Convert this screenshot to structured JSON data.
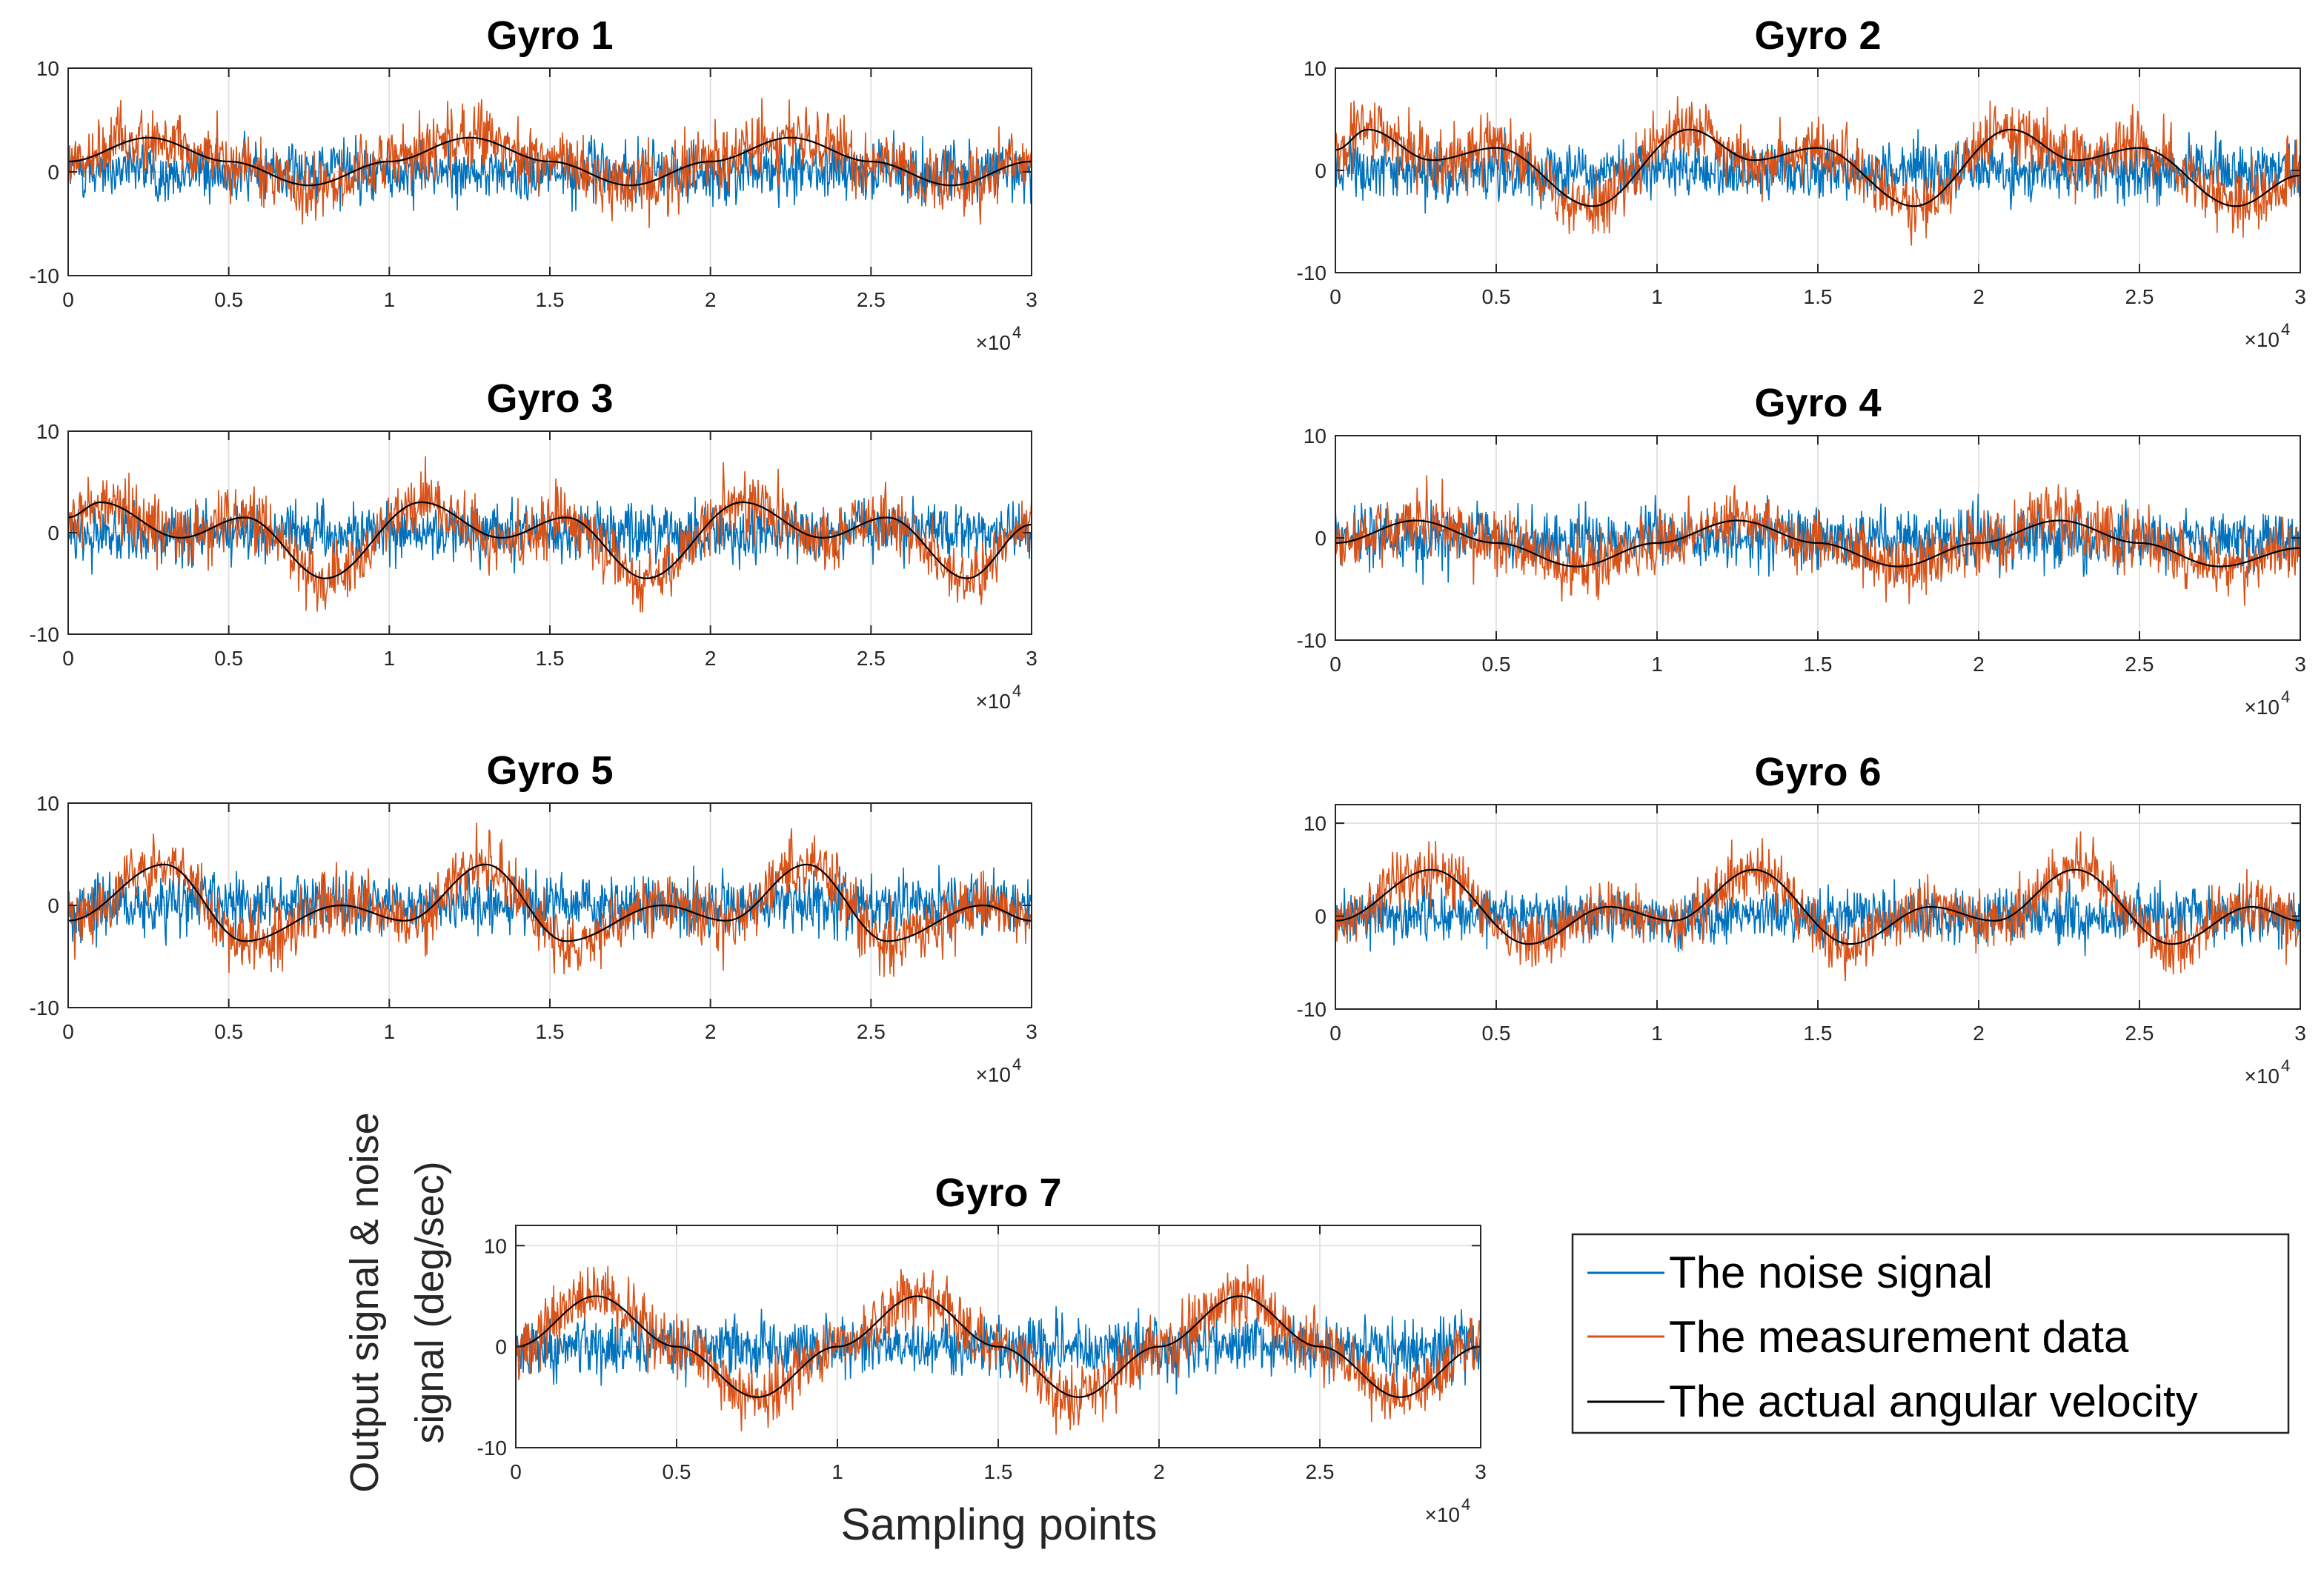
{
  "figure": {
    "ylabel_line1": "Output signal & noise",
    "ylabel_line2": "signal (deg/sec)",
    "xlabel": "Sampling points",
    "exponent_base": "×10",
    "exponent_power": "4"
  },
  "legend": {
    "placement": "bottom-right",
    "entries": [
      {
        "label": "The noise signal",
        "color": "#0072BD"
      },
      {
        "label": "The measurement data",
        "color": "#D95319"
      },
      {
        "label": "The actual angular velocity",
        "color": "#000000"
      }
    ]
  },
  "chart_data": [
    {
      "type": "line",
      "title": "Gyro 1",
      "xlim": [
        0,
        3
      ],
      "ylim": [
        -10,
        10
      ],
      "x_multiplier": 10000,
      "xticks": [
        "0",
        "0.5",
        "1",
        "1.5",
        "2",
        "2.5",
        "3"
      ],
      "yticks": [
        "-10",
        "0",
        "10"
      ],
      "grid": true,
      "series": [
        {
          "name": "The noise signal",
          "color": "#0072BD",
          "values": "random noise around 0, range about -4 to 4"
        },
        {
          "name": "The measurement data",
          "color": "#D95319",
          "values": "actual angular velocity plus noise"
        },
        {
          "name": "The actual angular velocity",
          "color": "#000000",
          "x": [
            0,
            0.25,
            0.5,
            0.75,
            1.0,
            1.25,
            1.5,
            1.75,
            2.0,
            2.25,
            2.5,
            2.75,
            3.0
          ],
          "y": [
            1.0,
            3.3,
            1.0,
            -1.3,
            1.0,
            3.3,
            1.0,
            -1.3,
            1.0,
            3.3,
            1.0,
            -1.3,
            1.0
          ]
        }
      ]
    },
    {
      "type": "line",
      "title": "Gyro 2",
      "xlim": [
        0,
        3
      ],
      "ylim": [
        -10,
        10
      ],
      "x_multiplier": 10000,
      "xticks": [
        "0",
        "0.5",
        "1",
        "1.5",
        "2",
        "2.5",
        "3"
      ],
      "yticks": [
        "-10",
        "0",
        "10"
      ],
      "grid": true,
      "series": [
        {
          "name": "The noise signal",
          "color": "#0072BD",
          "values": "random noise around 0, range about -4 to 4"
        },
        {
          "name": "The measurement data",
          "color": "#D95319",
          "values": "actual angular velocity plus noise"
        },
        {
          "name": "The actual angular velocity",
          "color": "#000000",
          "x": [
            0,
            0.1,
            0.3,
            0.5,
            0.8,
            1.1,
            1.3,
            1.5,
            1.8,
            2.1,
            2.3,
            2.5,
            2.8,
            3.0
          ],
          "y": [
            2.0,
            4.0,
            1.0,
            2.2,
            -3.5,
            4.0,
            1.0,
            2.2,
            -3.5,
            4.0,
            1.0,
            2.2,
            -3.5,
            -0.5
          ]
        }
      ]
    },
    {
      "type": "line",
      "title": "Gyro 3",
      "xlim": [
        0,
        3
      ],
      "ylim": [
        -10,
        10
      ],
      "x_multiplier": 10000,
      "xticks": [
        "0",
        "0.5",
        "1",
        "1.5",
        "2",
        "2.5",
        "3"
      ],
      "yticks": [
        "-10",
        "0",
        "10"
      ],
      "grid": true,
      "series": [
        {
          "name": "The noise signal",
          "color": "#0072BD",
          "values": "random noise around 0, range about -4 to 4"
        },
        {
          "name": "The measurement data",
          "color": "#D95319",
          "values": "actual angular velocity plus noise"
        },
        {
          "name": "The actual angular velocity",
          "color": "#000000",
          "x": [
            0,
            0.1,
            0.35,
            0.55,
            0.8,
            1.1,
            1.35,
            1.55,
            1.8,
            2.1,
            2.35,
            2.55,
            2.8,
            3.0
          ],
          "y": [
            1.5,
            3.0,
            -0.5,
            1.5,
            -4.5,
            3.0,
            -0.5,
            1.5,
            -4.5,
            3.0,
            -0.5,
            1.5,
            -4.5,
            0.8
          ]
        }
      ]
    },
    {
      "type": "line",
      "title": "Gyro 4",
      "xlim": [
        0,
        3
      ],
      "ylim": [
        -10,
        10
      ],
      "x_multiplier": 10000,
      "xticks": [
        "0",
        "0.5",
        "1",
        "1.5",
        "2",
        "2.5",
        "3"
      ],
      "yticks": [
        "-10",
        "0",
        "10"
      ],
      "grid": true,
      "series": [
        {
          "name": "The noise signal",
          "color": "#0072BD",
          "values": "random noise around 0, range about -4 to 4"
        },
        {
          "name": "The measurement data",
          "color": "#D95319",
          "values": "actual angular velocity plus noise"
        },
        {
          "name": "The actual angular velocity",
          "color": "#000000",
          "x": [
            0,
            0.25,
            0.5,
            0.75,
            1.0,
            1.25,
            1.5,
            1.75,
            2.0,
            2.25,
            2.5,
            2.75,
            3.0
          ],
          "y": [
            -0.5,
            1.7,
            -0.5,
            -2.8,
            -0.5,
            1.7,
            -0.5,
            -2.8,
            -0.5,
            1.7,
            -0.5,
            -2.8,
            -1.0
          ]
        }
      ]
    },
    {
      "type": "line",
      "title": "Gyro 5",
      "xlim": [
        0,
        3
      ],
      "ylim": [
        -10,
        10
      ],
      "x_multiplier": 10000,
      "xticks": [
        "0",
        "0.5",
        "1",
        "1.5",
        "2",
        "2.5",
        "3"
      ],
      "yticks": [
        "-10",
        "0",
        "10"
      ],
      "grid": true,
      "series": [
        {
          "name": "The noise signal",
          "color": "#0072BD",
          "values": "random noise around 0, range about -4 to 4"
        },
        {
          "name": "The measurement data",
          "color": "#D95319",
          "values": "actual angular velocity plus noise"
        },
        {
          "name": "The actual angular velocity",
          "color": "#000000",
          "x": [
            0,
            0.3,
            0.55,
            0.85,
            1.05,
            1.3,
            1.55,
            1.85,
            2.05,
            2.3,
            2.55,
            2.85,
            3.0
          ],
          "y": [
            -1.5,
            4.0,
            -3.5,
            0.0,
            -1.5,
            4.0,
            -3.5,
            0.0,
            -1.5,
            4.0,
            -3.5,
            0.0,
            -1.5
          ]
        }
      ]
    },
    {
      "type": "line",
      "title": "Gyro 6",
      "xlim": [
        0,
        3
      ],
      "ylim": [
        -10,
        12
      ],
      "x_multiplier": 10000,
      "xticks": [
        "0",
        "0.5",
        "1",
        "1.5",
        "2",
        "2.5",
        "3"
      ],
      "yticks": [
        "-10",
        "0",
        "10"
      ],
      "grid": true,
      "series": [
        {
          "name": "The noise signal",
          "color": "#0072BD",
          "values": "random noise around 0, range about -4 to 4"
        },
        {
          "name": "The measurement data",
          "color": "#D95319",
          "values": "actual angular velocity plus noise"
        },
        {
          "name": "The actual angular velocity",
          "color": "#000000",
          "x": [
            0,
            0.3,
            0.6,
            0.85,
            1.05,
            1.3,
            1.6,
            1.85,
            2.05,
            2.3,
            2.6,
            2.85,
            3.0
          ],
          "y": [
            -0.5,
            5.0,
            -3.0,
            1.0,
            -0.5,
            5.0,
            -3.0,
            1.0,
            -0.5,
            5.0,
            -3.0,
            1.0,
            -0.5
          ]
        }
      ]
    },
    {
      "type": "line",
      "title": "Gyro 7",
      "xlim": [
        0,
        3
      ],
      "ylim": [
        -10,
        12
      ],
      "x_multiplier": 10000,
      "xticks": [
        "0",
        "0.5",
        "1",
        "1.5",
        "2",
        "2.5",
        "3"
      ],
      "yticks": [
        "-10",
        "0",
        "10"
      ],
      "grid": true,
      "series": [
        {
          "name": "The noise signal",
          "color": "#0072BD",
          "values": "random noise around 0, range about -4 to 4"
        },
        {
          "name": "The measurement data",
          "color": "#D95319",
          "values": "actual angular velocity plus noise"
        },
        {
          "name": "The actual angular velocity",
          "color": "#000000",
          "x": [
            0,
            0.25,
            0.5,
            0.75,
            1.0,
            1.25,
            1.5,
            1.75,
            2.0,
            2.25,
            2.5,
            2.75,
            3.0
          ],
          "y": [
            0.0,
            5.0,
            0.0,
            -5.0,
            0.0,
            5.0,
            0.0,
            -5.0,
            0.0,
            5.0,
            0.0,
            -5.0,
            0.0
          ]
        }
      ]
    }
  ]
}
